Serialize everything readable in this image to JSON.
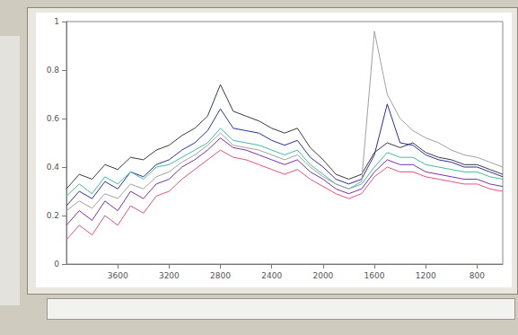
{
  "chart_data": {
    "type": "line",
    "x": [
      4000,
      3900,
      3800,
      3700,
      3600,
      3500,
      3400,
      3300,
      3200,
      3100,
      3000,
      2900,
      2800,
      2700,
      2600,
      2500,
      2400,
      2300,
      2200,
      2100,
      2000,
      1900,
      1800,
      1700,
      1600,
      1500,
      1400,
      1300,
      1200,
      1100,
      1000,
      900,
      800,
      700,
      600
    ],
    "series": [
      {
        "color": "#3a3a3a",
        "values": [
          0.31,
          0.37,
          0.35,
          0.41,
          0.39,
          0.44,
          0.43,
          0.47,
          0.49,
          0.53,
          0.56,
          0.61,
          0.74,
          0.63,
          0.61,
          0.59,
          0.56,
          0.54,
          0.56,
          0.48,
          0.43,
          0.37,
          0.35,
          0.37,
          0.46,
          0.5,
          0.48,
          0.5,
          0.46,
          0.44,
          0.43,
          0.41,
          0.41,
          0.39,
          0.37
        ]
      },
      {
        "color": "#2b2f9e",
        "values": [
          0.24,
          0.3,
          0.27,
          0.34,
          0.31,
          0.38,
          0.36,
          0.41,
          0.43,
          0.47,
          0.5,
          0.55,
          0.64,
          0.56,
          0.55,
          0.54,
          0.51,
          0.49,
          0.51,
          0.44,
          0.4,
          0.35,
          0.33,
          0.35,
          0.45,
          0.66,
          0.5,
          0.49,
          0.45,
          0.43,
          0.42,
          0.4,
          0.4,
          0.38,
          0.36
        ]
      },
      {
        "color": "#3cbf9a",
        "values": [
          0.28,
          0.33,
          0.29,
          0.36,
          0.33,
          0.38,
          0.35,
          0.4,
          0.41,
          0.44,
          0.47,
          0.5,
          0.56,
          0.51,
          0.5,
          0.49,
          0.47,
          0.45,
          0.47,
          0.41,
          0.37,
          0.33,
          0.31,
          0.33,
          0.4,
          0.46,
          0.44,
          0.44,
          0.41,
          0.4,
          0.39,
          0.38,
          0.38,
          0.36,
          0.35
        ]
      },
      {
        "color": "#7a2fb0",
        "values": [
          0.16,
          0.22,
          0.18,
          0.26,
          0.22,
          0.3,
          0.27,
          0.33,
          0.35,
          0.4,
          0.43,
          0.47,
          0.52,
          0.48,
          0.47,
          0.45,
          0.43,
          0.41,
          0.43,
          0.38,
          0.35,
          0.31,
          0.29,
          0.31,
          0.38,
          0.43,
          0.41,
          0.41,
          0.38,
          0.37,
          0.36,
          0.35,
          0.35,
          0.33,
          0.32
        ]
      },
      {
        "color": "#e8507a",
        "values": [
          0.1,
          0.16,
          0.12,
          0.2,
          0.16,
          0.24,
          0.21,
          0.28,
          0.3,
          0.35,
          0.39,
          0.43,
          0.47,
          0.44,
          0.43,
          0.41,
          0.39,
          0.37,
          0.39,
          0.35,
          0.32,
          0.29,
          0.27,
          0.29,
          0.36,
          0.4,
          0.38,
          0.38,
          0.36,
          0.35,
          0.34,
          0.33,
          0.33,
          0.31,
          0.3
        ]
      },
      {
        "color": "#a0a0a0",
        "values": [
          0.22,
          0.26,
          0.23,
          0.29,
          0.27,
          0.33,
          0.31,
          0.36,
          0.38,
          0.42,
          0.45,
          0.49,
          0.54,
          0.49,
          0.48,
          0.47,
          0.45,
          0.43,
          0.45,
          0.4,
          0.36,
          0.33,
          0.31,
          0.34,
          0.96,
          0.7,
          0.6,
          0.55,
          0.52,
          0.5,
          0.47,
          0.45,
          0.44,
          0.42,
          0.4
        ]
      }
    ],
    "xlim": [
      4000,
      600
    ],
    "xticks": [
      3600,
      3200,
      2800,
      2400,
      2000,
      1600,
      1200,
      800
    ],
    "ylim": [
      0,
      1
    ],
    "yticks": [
      0,
      0.2,
      0.4,
      0.6,
      0.8,
      1
    ],
    "grid": false
  }
}
